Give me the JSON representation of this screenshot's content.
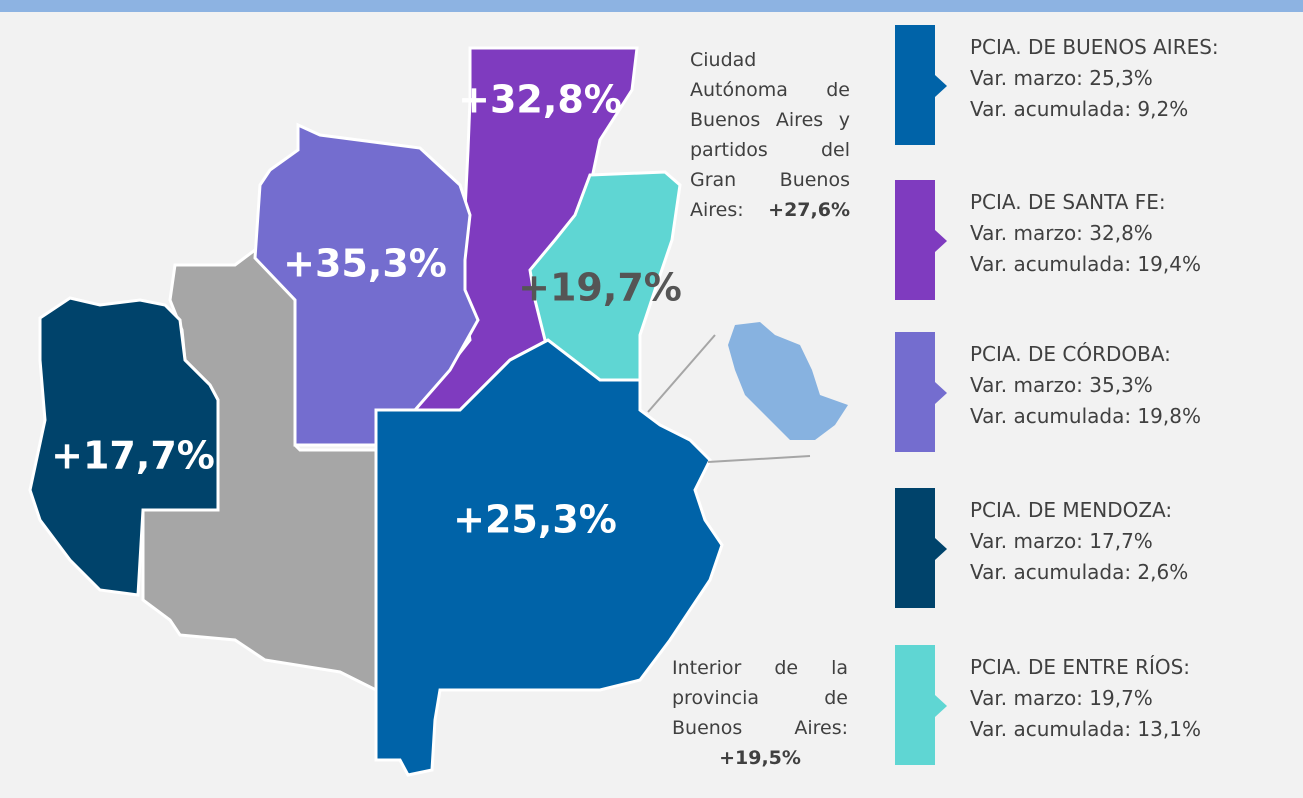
{
  "map": {
    "regions": [
      {
        "label": "+32,8%",
        "color": "#7f3bbf"
      },
      {
        "label": "+19,7%",
        "color": "#5fd6d3"
      },
      {
        "label": "+25,3%",
        "color": "#0063a8"
      },
      {
        "label": "+35,3%",
        "color": "#746dcf"
      },
      {
        "label": "+17,7%",
        "color": "#00436b"
      }
    ],
    "annotations": {
      "caba": {
        "text": "Ciudad Autónoma de Buenos Aires y partidos del Gran Buenos Aires:",
        "value": "+27,6%"
      },
      "interior": {
        "text": "Interior de la provincia de Buenos Aires:",
        "value": "+19,5%"
      }
    }
  },
  "legend": [
    {
      "title": "PCIA. DE BUENOS AIRES:",
      "line1": "Var. marzo: 25,3%",
      "line2": "Var. acumulada: 9,2%",
      "color": "#0063a8"
    },
    {
      "title": "PCIA. DE SANTA FE:",
      "line1": "Var. marzo: 32,8%",
      "line2": "Var. acumulada: 19,4%",
      "color": "#7f3bbf"
    },
    {
      "title": "PCIA. DE CÓRDOBA:",
      "line1": "Var. marzo: 35,3%",
      "line2": "Var. acumulada: 19,8%",
      "color": "#746dcf"
    },
    {
      "title": "PCIA. DE MENDOZA:",
      "line1": "Var. marzo: 17,7%",
      "line2": "Var. acumulada: 2,6%",
      "color": "#00436b"
    },
    {
      "title": "PCIA. DE ENTRE RÍOS:",
      "line1": "Var. marzo: 19,7%",
      "line2": "Var. acumulada: 13,1%",
      "color": "#5fd6d3"
    }
  ]
}
